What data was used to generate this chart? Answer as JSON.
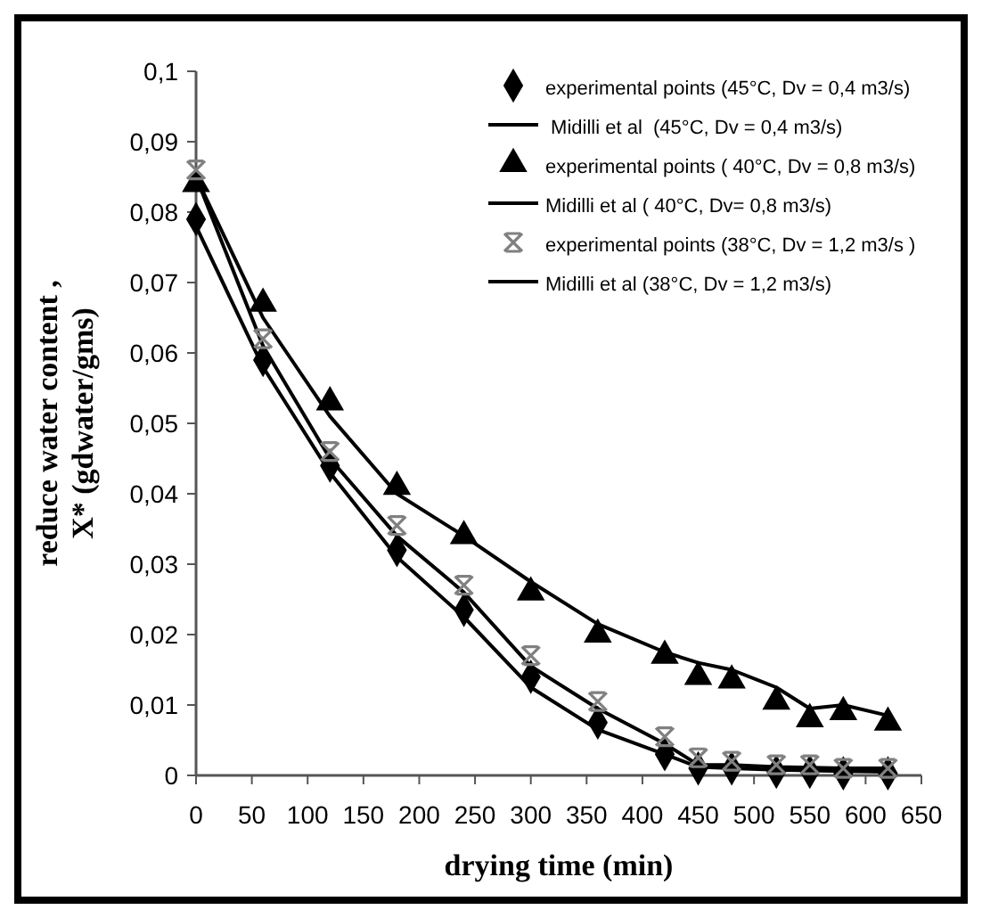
{
  "chart_data": {
    "type": "scatter",
    "xlabel": "drying time (min)",
    "ylabel": "reduce water content ,\nX* (gdwater/gms)",
    "x": [
      0,
      60,
      120,
      180,
      240,
      300,
      360,
      420,
      450,
      480,
      520,
      550,
      580,
      620
    ],
    "xlim": [
      0,
      650
    ],
    "xticks": [
      0,
      50,
      100,
      150,
      200,
      250,
      300,
      350,
      400,
      450,
      500,
      550,
      600,
      650
    ],
    "ylim": [
      0,
      0.1
    ],
    "yticks": [
      {
        "value": 0,
        "label": "0"
      },
      {
        "value": 0.01,
        "label": "0,01"
      },
      {
        "value": 0.02,
        "label": "0,02"
      },
      {
        "value": 0.03,
        "label": "0,03"
      },
      {
        "value": 0.04,
        "label": "0,04"
      },
      {
        "value": 0.05,
        "label": "0,05"
      },
      {
        "value": 0.06,
        "label": "0,06"
      },
      {
        "value": 0.07,
        "label": "0,07"
      },
      {
        "value": 0.08,
        "label": "0,08"
      },
      {
        "value": 0.09,
        "label": "0,09"
      },
      {
        "value": 0.1,
        "label": "0,1"
      }
    ],
    "grid": false,
    "legend": "top right",
    "series": [
      {
        "name": "experimental points (45°C, Dv = 0,4 m3/s)",
        "marker": "diamond",
        "color": "#000000",
        "values": [
          0.079,
          0.059,
          0.044,
          0.032,
          0.0235,
          0.014,
          0.0075,
          0.003,
          0.001,
          0.001,
          0.0005,
          0.0005,
          0.0003,
          0.0003
        ]
      },
      {
        "name": " Midilli et al  (45°C, Dv = 0,4 m3/s)",
        "type": "line",
        "line_style": "solid",
        "color": "#000000",
        "values": [
          0.078,
          0.058,
          0.043,
          0.031,
          0.0225,
          0.0125,
          0.0065,
          0.003,
          0.0012,
          0.001,
          0.0008,
          0.0007,
          0.0006,
          0.0005
        ]
      },
      {
        "name": "experimental points ( 40°C, Dv = 0,8 m3/s)",
        "marker": "triangle",
        "color": "#000000",
        "values": [
          0.084,
          0.067,
          0.053,
          0.041,
          0.034,
          0.026,
          0.02,
          0.017,
          0.014,
          0.0135,
          0.0105,
          0.008,
          0.009,
          0.0075
        ]
      },
      {
        "name": "Midilli et al ( 40°C, Dv= 0,8 m3/s)",
        "type": "line",
        "line_style": "solid",
        "color": "#000000",
        "values": [
          0.085,
          0.065,
          0.051,
          0.04,
          0.034,
          0.0275,
          0.0215,
          0.0175,
          0.016,
          0.015,
          0.0125,
          0.0095,
          0.01,
          0.0085
        ]
      },
      {
        "name": "experimental points (38°C, Dv = 1,2 m3/s )",
        "marker": "cross",
        "color": "#808080",
        "values": [
          0.086,
          0.062,
          0.046,
          0.0355,
          0.027,
          0.017,
          0.0105,
          0.0055,
          0.0025,
          0.002,
          0.0015,
          0.0015,
          0.001,
          0.001
        ]
      },
      {
        "name": "Midilli et al (38°C, Dv = 1,2 m3/s)",
        "type": "line",
        "line_style": "solid",
        "color": "#000000",
        "values": [
          0.085,
          0.061,
          0.045,
          0.034,
          0.026,
          0.0155,
          0.0095,
          0.0045,
          0.0015,
          0.0015,
          0.0012,
          0.0011,
          0.001,
          0.001
        ]
      }
    ]
  }
}
